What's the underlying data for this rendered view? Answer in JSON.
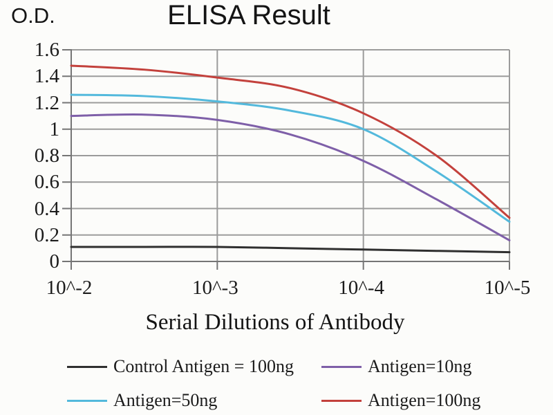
{
  "chart_data": {
    "type": "line",
    "title": "ELISA Result",
    "ylabel": "O.D.",
    "xlabel": "Serial Dilutions of Antibody",
    "ylim": [
      0,
      1.6
    ],
    "grid": true,
    "legend_position": "bottom",
    "x_exponents": [
      -2,
      -2.5,
      -3,
      -3.5,
      -4,
      -4.5,
      -5
    ],
    "x_ticks": [
      {
        "e": -2,
        "label": "10^-2"
      },
      {
        "e": -3,
        "label": "10^-3"
      },
      {
        "e": -4,
        "label": "10^-4"
      },
      {
        "e": -5,
        "label": "10^-5"
      }
    ],
    "y_ticks": [
      {
        "v": 0,
        "label": "0"
      },
      {
        "v": 0.2,
        "label": "0.2"
      },
      {
        "v": 0.4,
        "label": "0.4"
      },
      {
        "v": 0.6,
        "label": "0.6"
      },
      {
        "v": 0.8,
        "label": "0.8"
      },
      {
        "v": 1,
        "label": "1"
      },
      {
        "v": 1.2,
        "label": "1.2"
      },
      {
        "v": 1.4,
        "label": "1.4"
      },
      {
        "v": 1.6,
        "label": "1.6"
      }
    ],
    "series": [
      {
        "name": "Control Antigen = 100ng",
        "color": "#2f2f2f",
        "values": [
          0.11,
          0.11,
          0.11,
          0.1,
          0.09,
          0.08,
          0.07
        ]
      },
      {
        "name": "Antigen=10ng",
        "color": "#7e5fa8",
        "values": [
          1.1,
          1.11,
          1.07,
          0.96,
          0.76,
          0.47,
          0.16
        ]
      },
      {
        "name": "Antigen=50ng",
        "color": "#53b9dc",
        "values": [
          1.26,
          1.25,
          1.21,
          1.14,
          1.0,
          0.68,
          0.3
        ]
      },
      {
        "name": "Antigen=100ng",
        "color": "#c3413c",
        "values": [
          1.48,
          1.45,
          1.39,
          1.31,
          1.12,
          0.8,
          0.33
        ]
      }
    ]
  }
}
